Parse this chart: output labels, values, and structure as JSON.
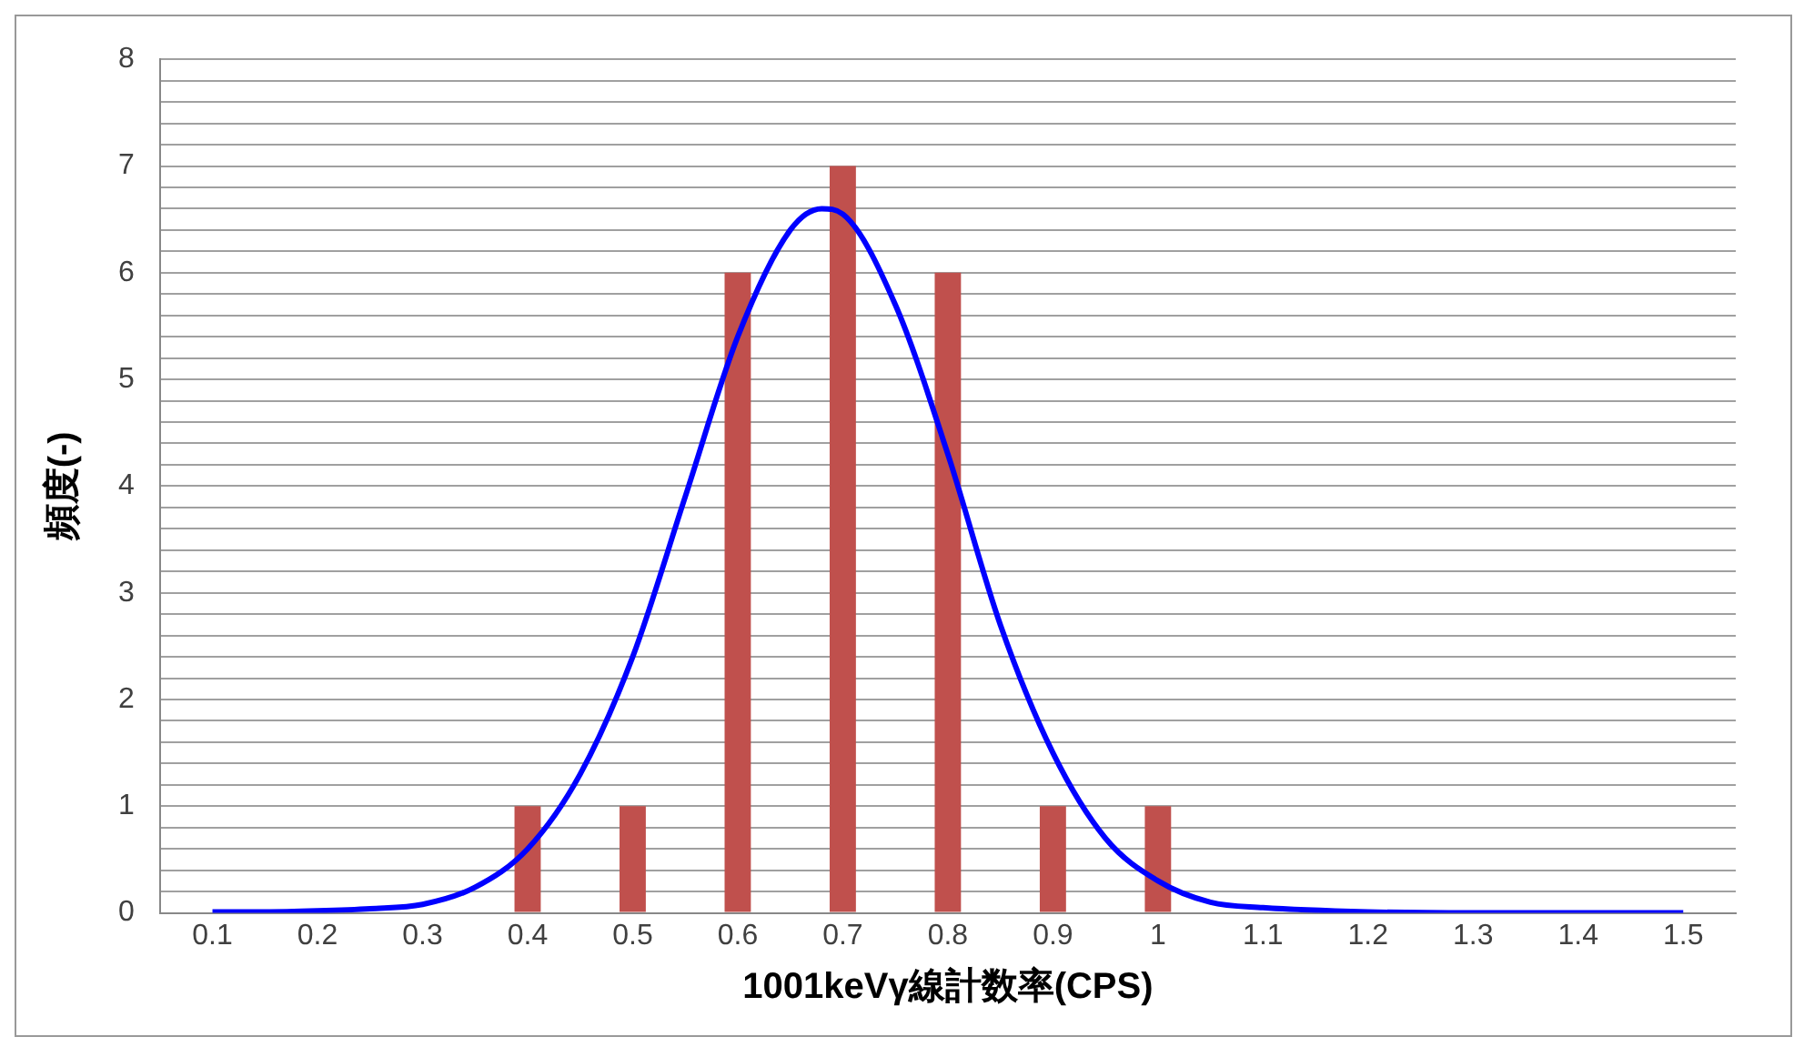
{
  "chart_data": {
    "type": "bar",
    "xlabel": "1001keVγ線計数率(CPS)",
    "ylabel": "頻度(-)",
    "x": [
      0.1,
      0.2,
      0.3,
      0.4,
      0.5,
      0.6,
      0.7,
      0.8,
      0.9,
      1,
      1.1,
      1.2,
      1.3,
      1.4,
      1.5
    ],
    "series": [
      {
        "color": "#c0504d",
        "values": [
          0,
          0,
          0,
          1,
          1,
          6,
          7,
          6,
          1,
          1,
          0,
          0,
          0,
          0,
          0
        ]
      },
      {
        "type": "line",
        "color": "#0000ff",
        "x": [
          0.1,
          0.15,
          0.2,
          0.25,
          0.3,
          0.35,
          0.4,
          0.45,
          0.5,
          0.55,
          0.6,
          0.65,
          0.68,
          0.7,
          0.75,
          0.8,
          0.85,
          0.9,
          0.95,
          1,
          1.05,
          1.1,
          1.2,
          1.3,
          1.4,
          1.5
        ],
        "values": [
          0.01,
          0.01,
          0.02,
          0.04,
          0.08,
          0.24,
          0.6,
          1.3,
          2.4,
          3.9,
          5.4,
          6.4,
          6.6,
          6.55,
          5.7,
          4.3,
          2.7,
          1.5,
          0.7,
          0.3,
          0.1,
          0.05,
          0.01,
          0,
          0,
          0
        ]
      }
    ],
    "xlim": [
      0.05,
      1.55
    ],
    "xticks": [
      0.1,
      0.2,
      0.3,
      0.4,
      0.5,
      0.6,
      0.7,
      0.8,
      0.9,
      1,
      1.1,
      1.2,
      1.3,
      1.4,
      1.5
    ],
    "ylim": [
      0,
      8
    ],
    "yticks": [
      0,
      {
        "value": 0.2,
        "label": null
      },
      {
        "value": 0.4,
        "label": null
      },
      {
        "value": 0.6,
        "label": null
      },
      {
        "value": 0.8,
        "label": null
      },
      1,
      {
        "value": 1.2,
        "label": null
      },
      {
        "value": 1.4,
        "label": null
      },
      {
        "value": 1.6,
        "label": null
      },
      {
        "value": 1.8,
        "label": null
      },
      2,
      {
        "value": 2.2,
        "label": null
      },
      {
        "value": 2.4,
        "label": null
      },
      {
        "value": 2.6,
        "label": null
      },
      {
        "value": 2.8,
        "label": null
      },
      3,
      {
        "value": 3.2,
        "label": null
      },
      {
        "value": 3.4,
        "label": null
      },
      {
        "value": 3.6,
        "label": null
      },
      {
        "value": 3.8,
        "label": null
      },
      4,
      {
        "value": 4.2,
        "label": null
      },
      {
        "value": 4.4,
        "label": null
      },
      {
        "value": 4.6,
        "label": null
      },
      {
        "value": 4.8,
        "label": null
      },
      5,
      {
        "value": 5.2,
        "label": null
      },
      {
        "value": 5.4,
        "label": null
      },
      {
        "value": 5.6,
        "label": null
      },
      {
        "value": 5.8,
        "label": null
      },
      6,
      {
        "value": 6.2,
        "label": null
      },
      {
        "value": 6.4,
        "label": null
      },
      {
        "value": 6.6,
        "label": null
      },
      {
        "value": 6.8,
        "label": null
      },
      7,
      {
        "value": 7.2,
        "label": null
      },
      {
        "value": 7.4,
        "label": null
      },
      {
        "value": 7.6,
        "label": null
      },
      {
        "value": 7.8,
        "label": null
      },
      8
    ],
    "grid": "y",
    "legend": false,
    "marker": "none"
  }
}
